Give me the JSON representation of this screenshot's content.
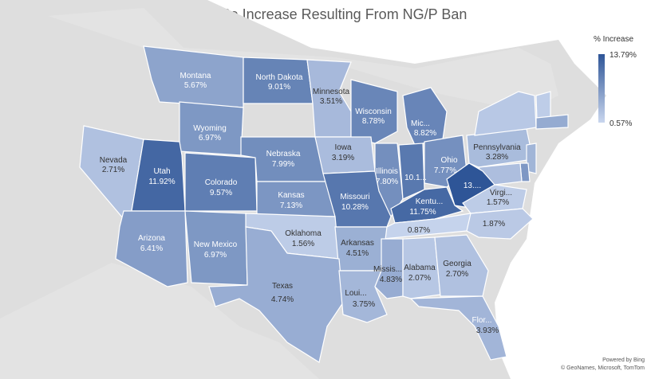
{
  "title": "% CO2e Increase Resulting From NG/P Ban",
  "legend": {
    "title": "% Increase",
    "max": "13.79%",
    "min": "0.57%"
  },
  "attribution": {
    "line1": "Powered by Bing",
    "line2": "© GeoNames, Microsoft, TomTom"
  },
  "colors": {
    "high": "#2e5597",
    "low": "#c9d6ee",
    "no_data": "#dedede"
  },
  "states": [
    {
      "id": "montana",
      "name": "Montana",
      "value": "5.67%",
      "v": 5.67
    },
    {
      "id": "north-dakota",
      "name": "North Dakota",
      "value": "9.01%",
      "v": 9.01
    },
    {
      "id": "minnesota",
      "name": "Minnesota",
      "value": "3.51%",
      "v": 3.51
    },
    {
      "id": "wisconsin",
      "name": "Wisconsin",
      "value": "8.78%",
      "v": 8.78
    },
    {
      "id": "michigan",
      "name": "Mic...",
      "value": "8.82%",
      "v": 8.82
    },
    {
      "id": "wyoming",
      "name": "Wyoming",
      "value": "6.97%",
      "v": 6.97
    },
    {
      "id": "nevada",
      "name": "Nevada",
      "value": "2.71%",
      "v": 2.71
    },
    {
      "id": "utah",
      "name": "Utah",
      "value": "11.92%",
      "v": 11.92
    },
    {
      "id": "colorado",
      "name": "Colorado",
      "value": "9.57%",
      "v": 9.57
    },
    {
      "id": "nebraska",
      "name": "Nebraska",
      "value": "7.99%",
      "v": 7.99
    },
    {
      "id": "iowa",
      "name": "Iowa",
      "value": "3.19%",
      "v": 3.19
    },
    {
      "id": "illinois",
      "name": "Illinois",
      "value": "7.80%",
      "v": 7.8
    },
    {
      "id": "indiana",
      "name": "",
      "value": "10.1...",
      "v": 10.1
    },
    {
      "id": "ohio",
      "name": "Ohio",
      "value": "7.77%",
      "v": 7.77
    },
    {
      "id": "pennsylvania",
      "name": "Pennsylvania",
      "value": "3.28%",
      "v": 3.28
    },
    {
      "id": "west-virginia",
      "name": "",
      "value": "13....",
      "v": 13.79
    },
    {
      "id": "kansas",
      "name": "Kansas",
      "value": "7.13%",
      "v": 7.13
    },
    {
      "id": "missouri",
      "name": "Missouri",
      "value": "10.28%",
      "v": 10.28
    },
    {
      "id": "kentucky",
      "name": "Kentu...",
      "value": "11.75%",
      "v": 11.75
    },
    {
      "id": "virginia",
      "name": "Virgi...",
      "value": "1.57%",
      "v": 1.57
    },
    {
      "id": "arizona",
      "name": "Arizona",
      "value": "6.41%",
      "v": 6.41
    },
    {
      "id": "new-mexico",
      "name": "New Mexico",
      "value": "6.97%",
      "v": 6.97
    },
    {
      "id": "oklahoma",
      "name": "Oklahoma",
      "value": "1.56%",
      "v": 1.56
    },
    {
      "id": "arkansas",
      "name": "Arkansas",
      "value": "4.51%",
      "v": 4.51
    },
    {
      "id": "tennessee",
      "name": "",
      "value": "0.87%",
      "v": 0.87
    },
    {
      "id": "north-carolina",
      "name": "",
      "value": "1.87%",
      "v": 1.87
    },
    {
      "id": "mississippi",
      "name": "Missis...",
      "value": "4.83%",
      "v": 4.83
    },
    {
      "id": "alabama",
      "name": "Alabama",
      "value": "2.07%",
      "v": 2.07
    },
    {
      "id": "georgia",
      "name": "Georgia",
      "value": "2.70%",
      "v": 2.7
    },
    {
      "id": "texas",
      "name": "Texas",
      "value": "4.74%",
      "v": 4.74
    },
    {
      "id": "louisiana",
      "name": "Loui...",
      "value": "3.75%",
      "v": 3.75
    },
    {
      "id": "florida",
      "name": "Flor...",
      "value": "3.93%",
      "v": 3.93
    },
    {
      "id": "new-york",
      "name": "",
      "value": "",
      "v": 2.0
    },
    {
      "id": "maryland",
      "name": "",
      "value": "",
      "v": 3.0
    },
    {
      "id": "new-jersey",
      "name": "",
      "value": "",
      "v": 4.0
    },
    {
      "id": "delaware",
      "name": "",
      "value": "",
      "v": 7.0
    },
    {
      "id": "massachusetts",
      "name": "",
      "value": "",
      "v": 5.0
    },
    {
      "id": "vermont",
      "name": "",
      "value": "",
      "v": 1.5
    }
  ]
}
